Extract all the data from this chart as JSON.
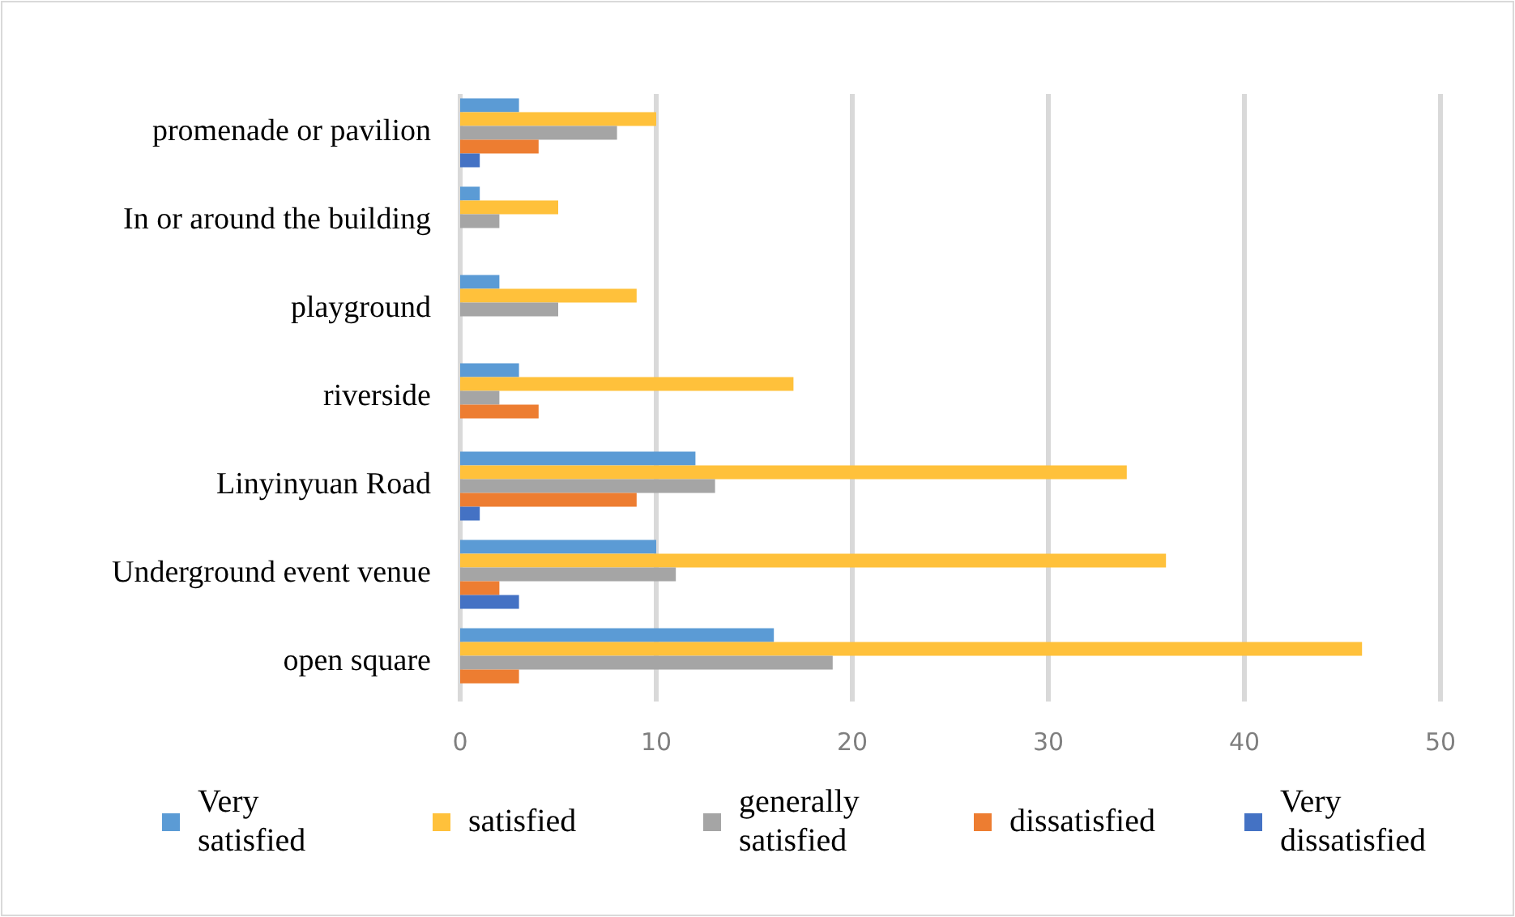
{
  "chart_data": {
    "type": "bar",
    "orientation": "horizontal",
    "categories": [
      "promenade or pavilion",
      "In or around the building",
      "playground",
      "riverside",
      "Linyinyuan Road",
      "Underground event venue",
      "open square"
    ],
    "series": [
      {
        "name": "Very satisfied",
        "color": "#5b9bd5",
        "values": [
          3,
          1,
          2,
          3,
          12,
          10,
          16
        ]
      },
      {
        "name": "satisfied",
        "color": "#ffc13b",
        "values": [
          10,
          5,
          9,
          17,
          34,
          36,
          46
        ]
      },
      {
        "name": "generally satisfied",
        "color": "#a5a5a5",
        "values": [
          8,
          2,
          5,
          2,
          13,
          11,
          19
        ]
      },
      {
        "name": "dissatisfied",
        "color": "#ed7d31",
        "values": [
          4,
          0,
          0,
          4,
          9,
          2,
          3
        ]
      },
      {
        "name": "Very dissatisfied",
        "color": "#4472c4",
        "values": [
          1,
          0,
          0,
          0,
          1,
          3,
          0
        ]
      }
    ],
    "xlim": [
      0,
      50
    ],
    "xticks": [
      0,
      10,
      20,
      30,
      40,
      50
    ],
    "grid": "x",
    "legend": "bottom"
  }
}
